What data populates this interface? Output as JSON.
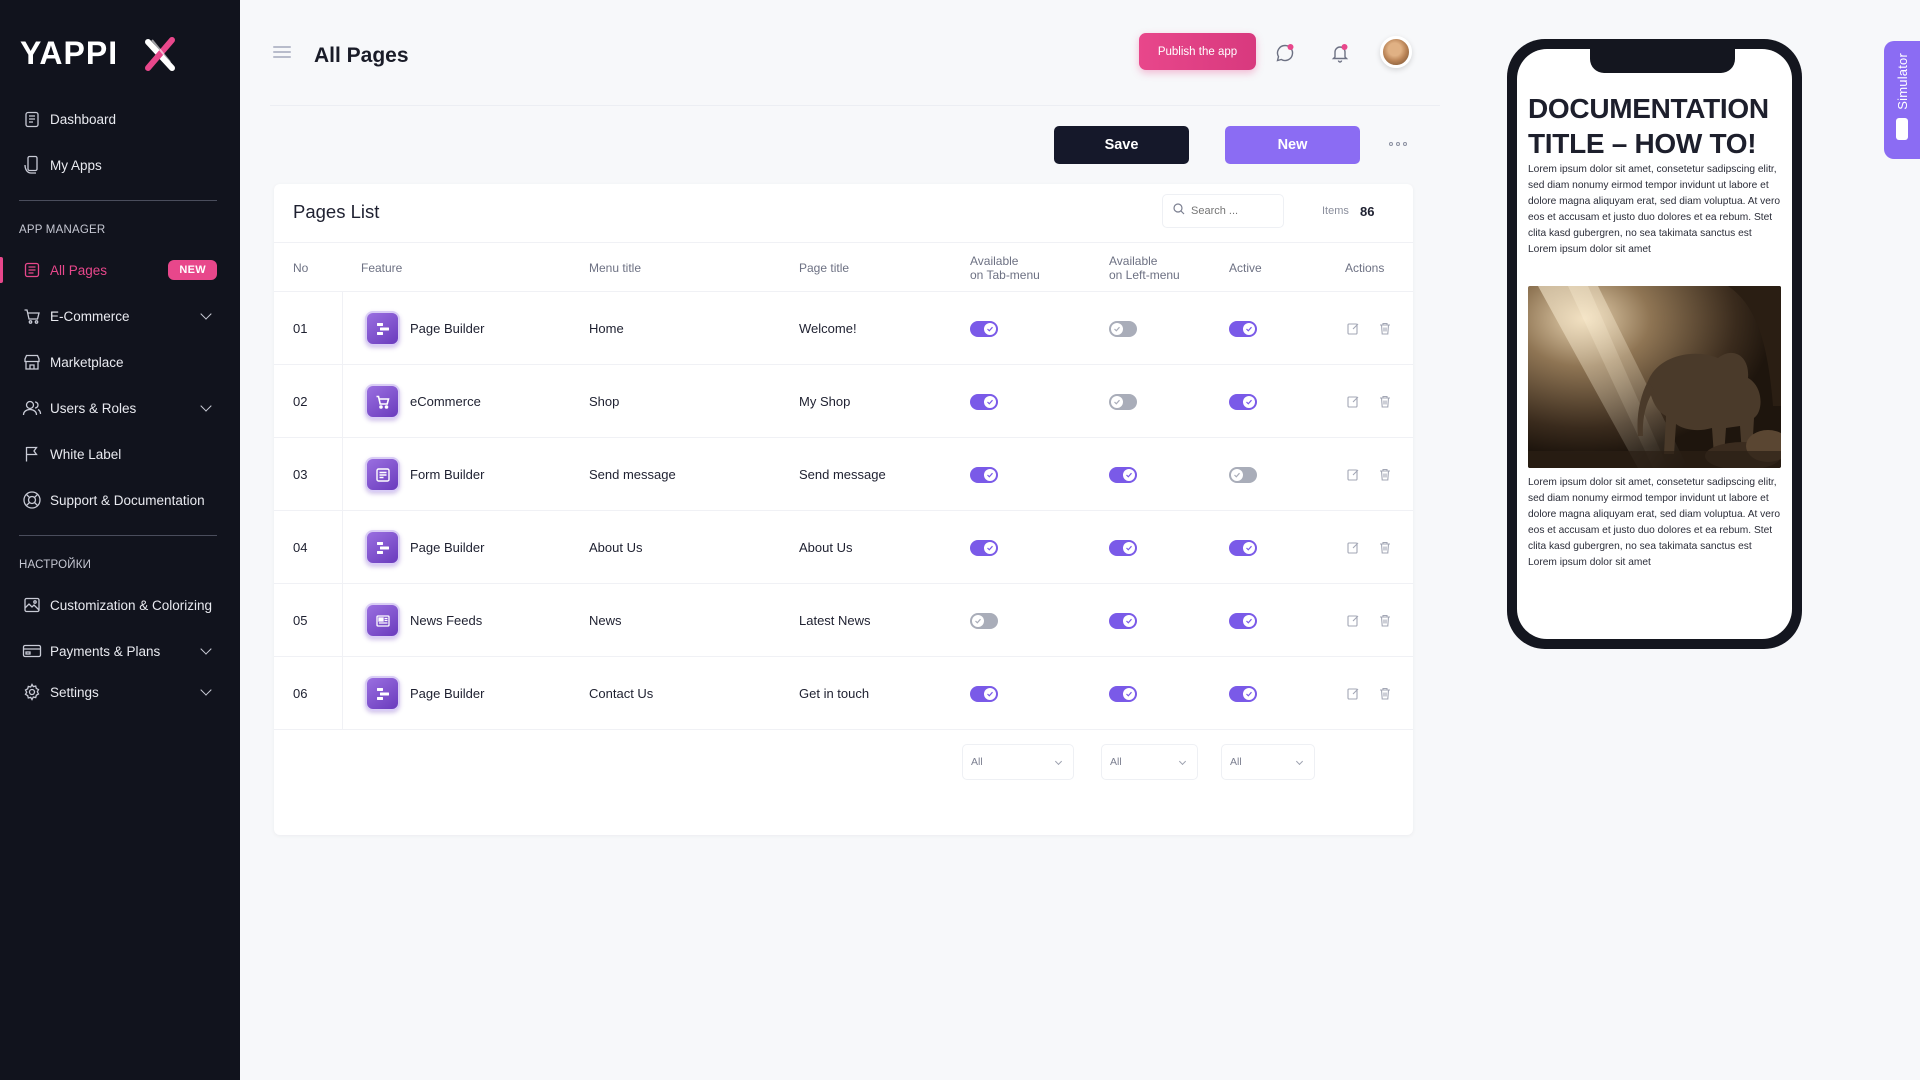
{
  "brand": {
    "logo_text": "YAPPIX",
    "accent": "#e8478b",
    "purple": "#8b6cf3",
    "dark": "#11131d"
  },
  "sidebar": {
    "items_top": [
      {
        "label": "Dashboard",
        "icon": "clipboard-icon"
      },
      {
        "label": "My Apps",
        "icon": "phone-hand-icon"
      }
    ],
    "section_app_manager": "APP MANAGER",
    "items_app": [
      {
        "label": "All Pages",
        "icon": "pages-list-icon",
        "active": true,
        "badge": "NEW"
      },
      {
        "label": "E-Commerce",
        "icon": "cart-icon",
        "expandable": true
      },
      {
        "label": "Marketplace",
        "icon": "store-icon"
      },
      {
        "label": "Users & Roles",
        "icon": "users-icon",
        "expandable": true
      },
      {
        "label": "White Label",
        "icon": "flag-icon"
      },
      {
        "label": "Support & Documentation",
        "icon": "lifebuoy-icon"
      }
    ],
    "section_settings": "НАСТРОЙКИ",
    "items_settings": [
      {
        "label": "Customization & Colorizing",
        "icon": "image-icon"
      },
      {
        "label": "Payments & Plans",
        "icon": "wallet-icon",
        "expandable": true
      },
      {
        "label": "Settings",
        "icon": "gear-icon",
        "expandable": true
      }
    ]
  },
  "header": {
    "title": "All Pages",
    "publish_label": "Publish the app",
    "save_label": "Save",
    "new_label": "New"
  },
  "pages_list": {
    "title": "Pages List",
    "search_placeholder": "Search ...",
    "items_label": "Items",
    "items_count": "86",
    "columns": {
      "no": "No",
      "feature": "Feature",
      "menu_title": "Menu title",
      "page_title": "Page title",
      "tab_menu_1": "Available",
      "tab_menu_2": "on Tab-menu",
      "left_menu_1": "Available",
      "left_menu_2": "on Left-menu",
      "active": "Active",
      "actions": "Actions"
    },
    "rows": [
      {
        "no": "01",
        "feature": "Page Builder",
        "feature_icon": "page-builder-icon",
        "menu_title": "Home",
        "page_title": "Welcome!",
        "tab_menu": true,
        "left_menu": false,
        "active": true
      },
      {
        "no": "02",
        "feature": "eCommerce",
        "feature_icon": "ecommerce-icon",
        "menu_title": "Shop",
        "page_title": "My Shop",
        "tab_menu": true,
        "left_menu": false,
        "active": true
      },
      {
        "no": "03",
        "feature": "Form Builder",
        "feature_icon": "form-builder-icon",
        "menu_title": "Send message",
        "page_title": "Send message",
        "tab_menu": true,
        "left_menu": true,
        "active": false
      },
      {
        "no": "04",
        "feature": "Page Builder",
        "feature_icon": "page-builder-icon",
        "menu_title": "About Us",
        "page_title": "About Us",
        "tab_menu": true,
        "left_menu": true,
        "active": true
      },
      {
        "no": "05",
        "feature": "News Feeds",
        "feature_icon": "news-feeds-icon",
        "menu_title": "News",
        "page_title": "Latest News",
        "tab_menu": false,
        "left_menu": true,
        "active": true
      },
      {
        "no": "06",
        "feature": "Page Builder",
        "feature_icon": "page-builder-icon",
        "menu_title": "Contact Us",
        "page_title": "Get in touch",
        "tab_menu": true,
        "left_menu": true,
        "active": true
      }
    ],
    "filters": {
      "tab_menu": "All",
      "left_menu": "All",
      "active": "All"
    }
  },
  "simulator": {
    "tab_label": "Simulator",
    "doc_title": "DOCUMENTATION TITLE – HOW TO!",
    "para1": "Lorem ipsum dolor sit amet, consetetur sadipscing elitr, sed diam nonumy eirmod tempor invidunt ut labore et dolore magna aliquyam erat, sed diam voluptua. At vero eos et accusam et justo duo dolores et ea rebum. Stet clita kasd gubergren, no sea takimata sanctus est Lorem ipsum dolor sit amet",
    "para2": "Lorem ipsum dolor sit amet, consetetur sadipscing elitr, sed diam nonumy eirmod tempor invidunt ut labore et dolore magna aliquyam erat, sed diam voluptua. At vero eos et accusam et justo duo dolores et ea rebum. Stet clita kasd gubergren, no sea takimata sanctus est Lorem ipsum dolor sit amet"
  }
}
